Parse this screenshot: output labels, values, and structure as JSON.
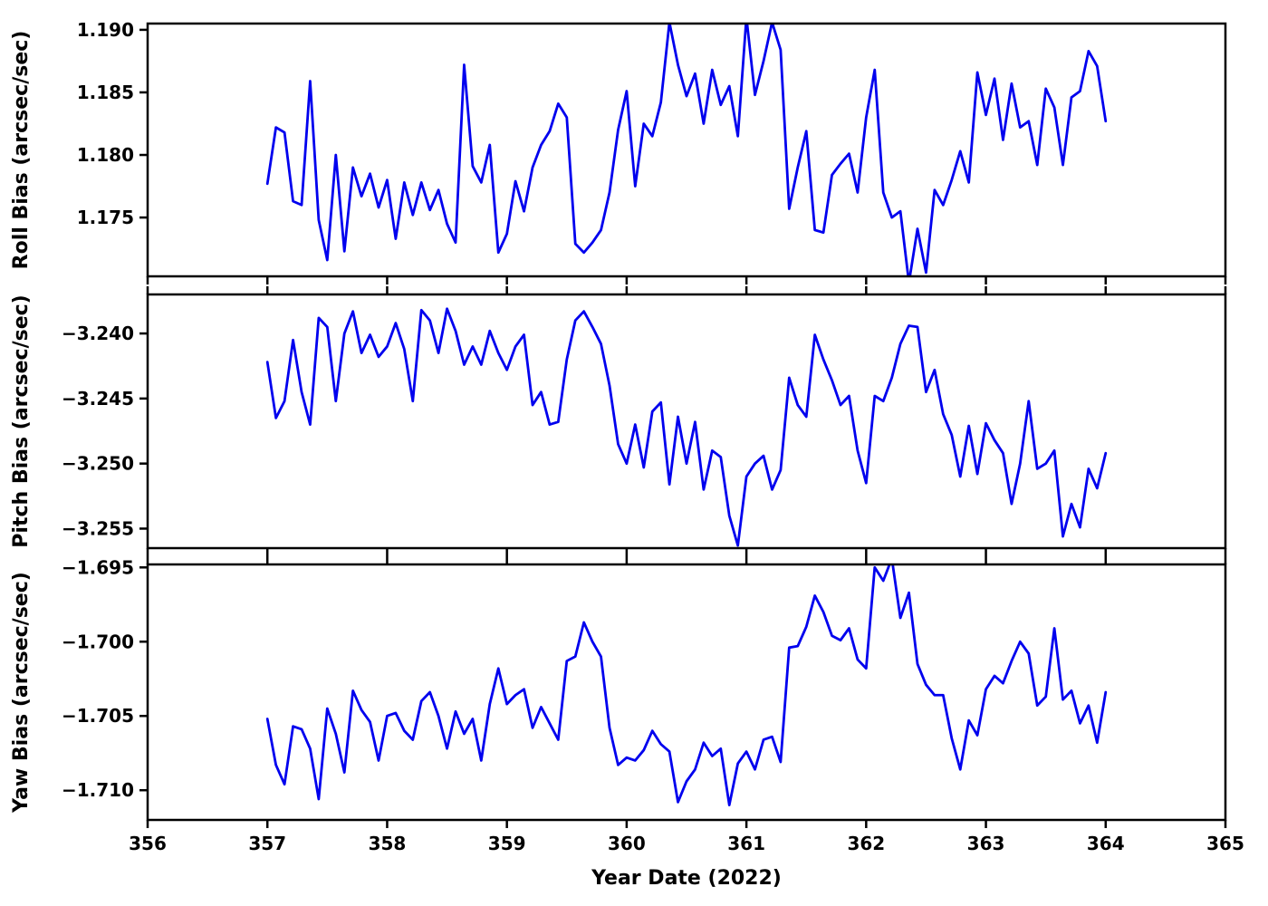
{
  "figure": {
    "background": "#ffffff"
  },
  "chart_data": {
    "type": "line",
    "title": "",
    "xlabel": "Year Date (2022)",
    "xlim": [
      356,
      365
    ],
    "x_ticks": [
      356,
      357,
      358,
      359,
      360,
      361,
      362,
      363,
      364,
      365
    ],
    "x_tick_labels": [
      "356",
      "357",
      "358",
      "359",
      "360",
      "361",
      "362",
      "363",
      "364",
      "365"
    ],
    "line_color": "#0000EE",
    "grid": false,
    "legend": "none",
    "x": [
      357.0,
      357.0714,
      357.1429,
      357.2143,
      357.2857,
      357.3571,
      357.4286,
      357.5,
      357.5714,
      357.6429,
      357.7143,
      357.7857,
      357.8571,
      357.9286,
      358.0,
      358.0714,
      358.1429,
      358.2143,
      358.2857,
      358.3571,
      358.4286,
      358.5,
      358.5714,
      358.6429,
      358.7143,
      358.7857,
      358.8571,
      358.9286,
      359.0,
      359.0714,
      359.1429,
      359.2143,
      359.2857,
      359.3571,
      359.4286,
      359.5,
      359.5714,
      359.6429,
      359.7143,
      359.7857,
      359.8571,
      359.9286,
      360.0,
      360.0714,
      360.1429,
      360.2143,
      360.2857,
      360.3571,
      360.4286,
      360.5,
      360.5714,
      360.6429,
      360.7143,
      360.7857,
      360.8571,
      360.9286,
      361.0,
      361.0714,
      361.1429,
      361.2143,
      361.2857,
      361.3571,
      361.4286,
      361.5,
      361.5714,
      361.6429,
      361.7143,
      361.7857,
      361.8571,
      361.9286,
      362.0,
      362.0714,
      362.1429,
      362.2143,
      362.2857,
      362.3571,
      362.4286,
      362.5,
      362.5714,
      362.6429,
      362.7143,
      362.7857,
      362.8571,
      362.9286,
      363.0,
      363.0714,
      363.1429,
      363.2143,
      363.2857,
      363.3571,
      363.4286,
      363.5,
      363.5714,
      363.6429,
      363.7143,
      363.7857,
      363.8571,
      363.9286,
      364.0
    ],
    "panels": [
      {
        "name": "roll",
        "ylabel": "Roll Bias (arcsec/sec)",
        "ylim": [
          1.1703,
          1.1905
        ],
        "y_ticks": [
          1.175,
          1.18,
          1.185,
          1.19
        ],
        "y_tick_labels": [
          "1.175",
          "1.180",
          "1.185",
          "1.190"
        ],
        "values": [
          1.1777,
          1.1822,
          1.1818,
          1.1763,
          1.176,
          1.1859,
          1.1748,
          1.1716,
          1.18,
          1.1723,
          1.179,
          1.1767,
          1.1785,
          1.1758,
          1.178,
          1.1733,
          1.1778,
          1.1752,
          1.1778,
          1.1756,
          1.1772,
          1.1745,
          1.173,
          1.1872,
          1.1791,
          1.1778,
          1.1808,
          1.1722,
          1.1737,
          1.1779,
          1.1755,
          1.179,
          1.1808,
          1.1819,
          1.1841,
          1.183,
          1.1729,
          1.1722,
          1.173,
          1.174,
          1.177,
          1.182,
          1.1851,
          1.1775,
          1.1825,
          1.1815,
          1.1842,
          1.1906,
          1.1872,
          1.1847,
          1.1865,
          1.1825,
          1.1868,
          1.184,
          1.1855,
          1.1815,
          1.191,
          1.1848,
          1.1875,
          1.1906,
          1.1884,
          1.1757,
          1.179,
          1.1819,
          1.174,
          1.1738,
          1.1784,
          1.1793,
          1.1801,
          1.177,
          1.183,
          1.1868,
          1.177,
          1.175,
          1.1755,
          1.1698,
          1.1741,
          1.1706,
          1.1772,
          1.176,
          1.178,
          1.1803,
          1.1778,
          1.1866,
          1.1832,
          1.1861,
          1.1812,
          1.1857,
          1.1822,
          1.1827,
          1.1792,
          1.1853,
          1.1838,
          1.1792,
          1.1846,
          1.1851,
          1.1883,
          1.1871,
          1.1827
        ]
      },
      {
        "name": "pitch",
        "ylabel": "Pitch Bias (arcsec/sec)",
        "ylim": [
          -3.2565,
          -3.237
        ],
        "y_ticks": [
          -3.255,
          -3.25,
          -3.245,
          -3.24
        ],
        "y_tick_labels": [
          "−3.255",
          "−3.250",
          "−3.245",
          "−3.240"
        ],
        "values": [
          -3.2422,
          -3.2465,
          -3.2452,
          -3.2405,
          -3.2445,
          -3.247,
          -3.2388,
          -3.2395,
          -3.2452,
          -3.24,
          -3.2383,
          -3.2415,
          -3.2401,
          -3.2418,
          -3.241,
          -3.2392,
          -3.2412,
          -3.2452,
          -3.2382,
          -3.239,
          -3.2415,
          -3.2381,
          -3.2398,
          -3.2424,
          -3.241,
          -3.2424,
          -3.2398,
          -3.2415,
          -3.2428,
          -3.241,
          -3.2401,
          -3.2455,
          -3.2445,
          -3.247,
          -3.2468,
          -3.242,
          -3.239,
          -3.2383,
          -3.2395,
          -3.2408,
          -3.244,
          -3.2485,
          -3.25,
          -3.247,
          -3.2503,
          -3.246,
          -3.2453,
          -3.2516,
          -3.2464,
          -3.25,
          -3.2468,
          -3.252,
          -3.249,
          -3.2495,
          -3.254,
          -3.2563,
          -3.251,
          -3.25,
          -3.2494,
          -3.252,
          -3.2505,
          -3.2434,
          -3.2455,
          -3.2464,
          -3.2401,
          -3.242,
          -3.2436,
          -3.2455,
          -3.2448,
          -3.249,
          -3.2515,
          -3.2448,
          -3.2452,
          -3.2434,
          -3.2408,
          -3.2394,
          -3.2395,
          -3.2445,
          -3.2428,
          -3.2462,
          -3.2478,
          -3.251,
          -3.2471,
          -3.2508,
          -3.2469,
          -3.2482,
          -3.2492,
          -3.2531,
          -3.25,
          -3.2452,
          -3.2504,
          -3.25,
          -3.249,
          -3.2556,
          -3.2531,
          -3.2549,
          -3.2504,
          -3.2519,
          -3.2492
        ]
      },
      {
        "name": "yaw",
        "ylabel": "Yaw Bias (arcsec/sec)",
        "ylim": [
          -1.712,
          -1.6948
        ],
        "y_ticks": [
          -1.71,
          -1.705,
          -1.7,
          -1.695
        ],
        "y_tick_labels": [
          "−1.710",
          "−1.705",
          "−1.700",
          "−1.695"
        ],
        "values": [
          -1.7052,
          -1.7083,
          -1.7096,
          -1.7057,
          -1.7059,
          -1.7072,
          -1.7106,
          -1.7045,
          -1.7062,
          -1.7088,
          -1.7033,
          -1.7046,
          -1.7054,
          -1.708,
          -1.705,
          -1.7048,
          -1.706,
          -1.7066,
          -1.704,
          -1.7034,
          -1.705,
          -1.7072,
          -1.7047,
          -1.7062,
          -1.7052,
          -1.708,
          -1.7042,
          -1.7018,
          -1.7042,
          -1.7036,
          -1.7032,
          -1.7058,
          -1.7044,
          -1.7055,
          -1.7066,
          -1.7013,
          -1.701,
          -1.6987,
          -1.7,
          -1.701,
          -1.7058,
          -1.7083,
          -1.7078,
          -1.708,
          -1.7073,
          -1.706,
          -1.7069,
          -1.7074,
          -1.7108,
          -1.7094,
          -1.7086,
          -1.7068,
          -1.7077,
          -1.7072,
          -1.711,
          -1.7082,
          -1.7074,
          -1.7086,
          -1.7066,
          -1.7064,
          -1.7081,
          -1.7004,
          -1.7003,
          -1.699,
          -1.6969,
          -1.698,
          -1.6996,
          -1.6999,
          -1.6991,
          -1.7012,
          -1.7018,
          -1.695,
          -1.6959,
          -1.6944,
          -1.6984,
          -1.6967,
          -1.7015,
          -1.7029,
          -1.7036,
          -1.7036,
          -1.7065,
          -1.7086,
          -1.7053,
          -1.7063,
          -1.7032,
          -1.7023,
          -1.7028,
          -1.7013,
          -1.7,
          -1.7008,
          -1.7043,
          -1.7037,
          -1.6991,
          -1.7039,
          -1.7033,
          -1.7055,
          -1.7043,
          -1.7068,
          -1.7034
        ]
      }
    ]
  }
}
